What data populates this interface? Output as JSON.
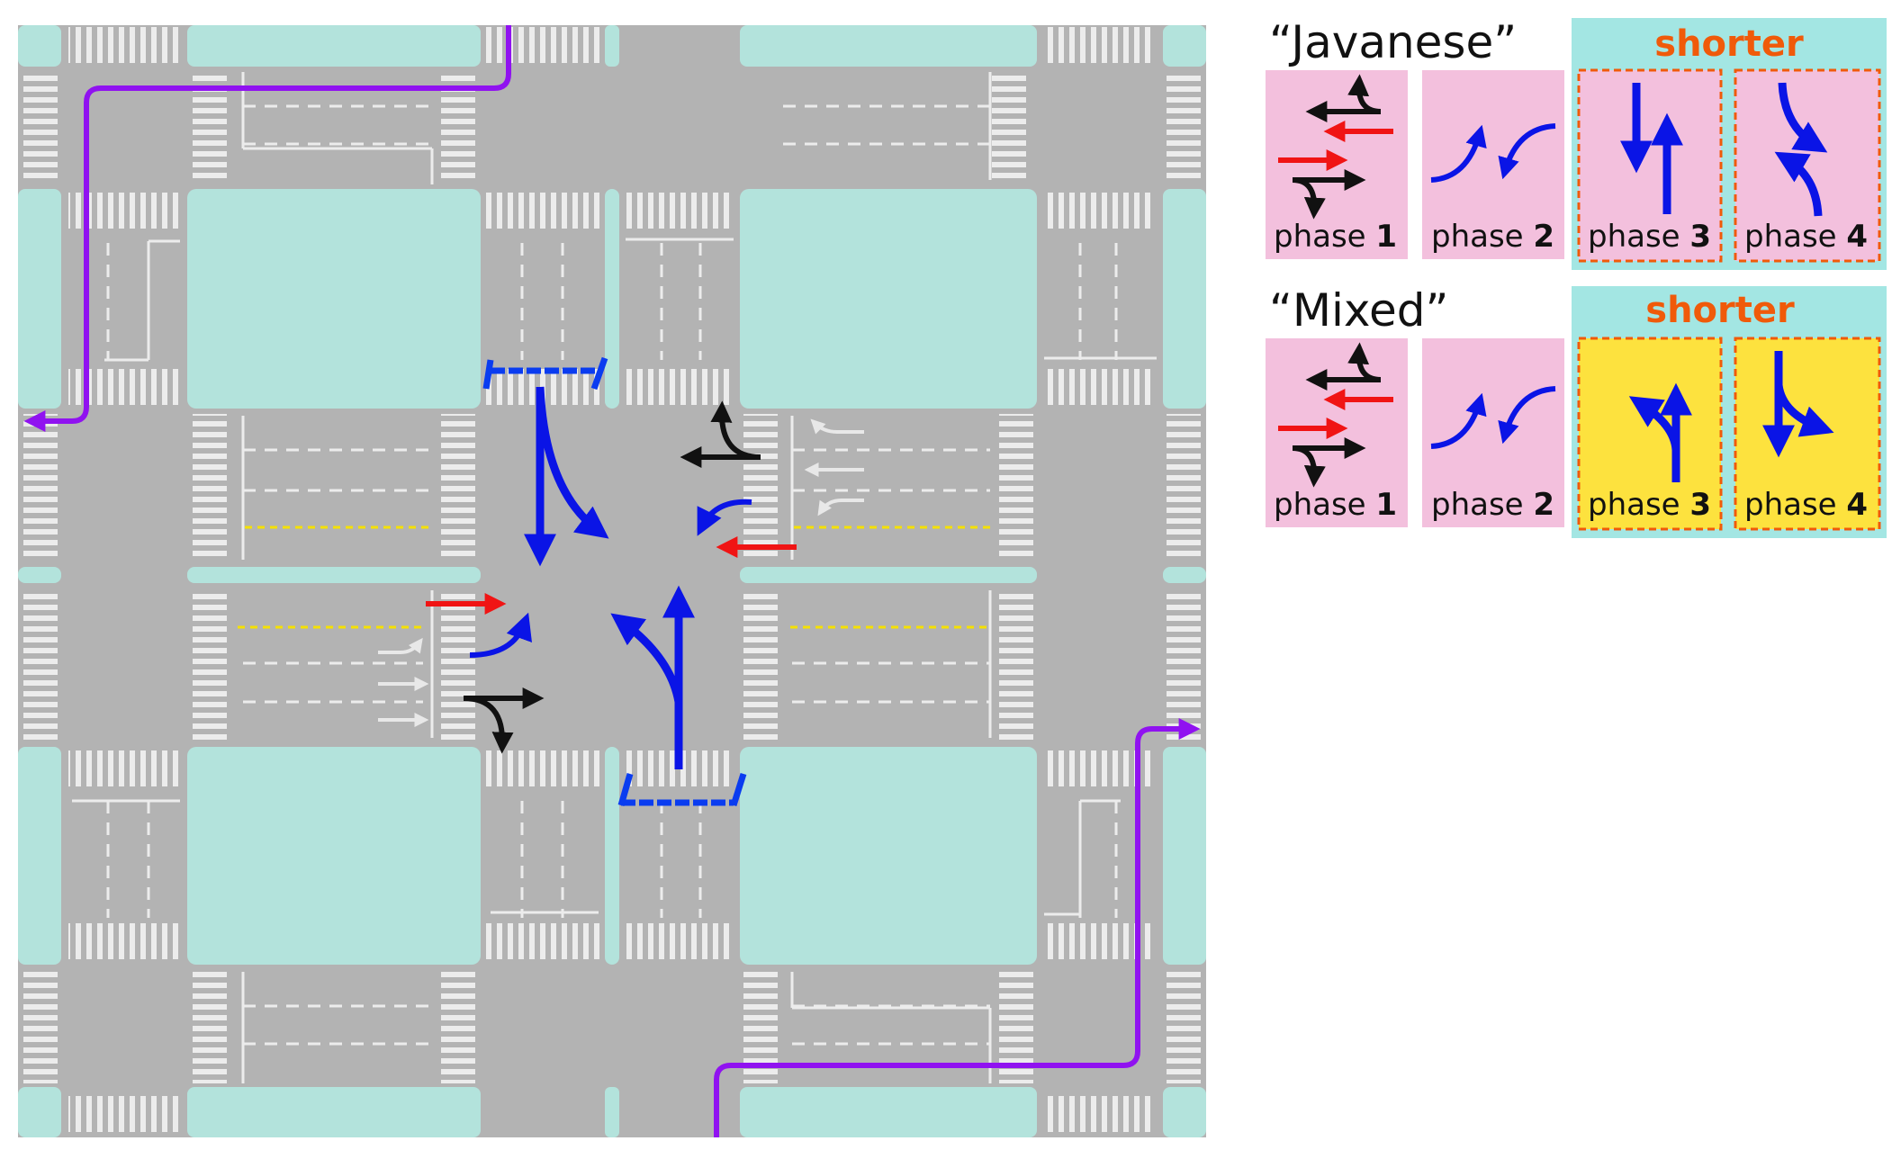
{
  "schemes": [
    {
      "title": "“Javanese”",
      "shorter_label": "shorter",
      "phases": [
        {
          "label": "phase",
          "number": "1",
          "fill": "#f3c0dd"
        },
        {
          "label": "phase",
          "number": "2",
          "fill": "#f3c0dd"
        },
        {
          "label": "phase",
          "number": "3",
          "fill": "#f3c0dd"
        },
        {
          "label": "phase",
          "number": "4",
          "fill": "#f3c0dd"
        }
      ]
    },
    {
      "title": "“Mixed”",
      "shorter_label": "shorter",
      "phases": [
        {
          "label": "phase",
          "number": "1",
          "fill": "#f3c0dd"
        },
        {
          "label": "phase",
          "number": "2",
          "fill": "#f3c0dd"
        },
        {
          "label": "phase",
          "number": "3",
          "fill": "#fde23e"
        },
        {
          "label": "phase",
          "number": "4",
          "fill": "#fde23e"
        }
      ]
    }
  ],
  "colors": {
    "road": "#b3b3b3",
    "block": "#b3e3dc",
    "phase_pink": "#f3c0dd",
    "phase_yellow": "#fde23e",
    "shorter_bg": "#a3e6e3",
    "shorter_text": "#f05a0a",
    "blue_arrow": "#0a14e6",
    "red_arrow": "#f01414",
    "route": "#9012f0"
  }
}
